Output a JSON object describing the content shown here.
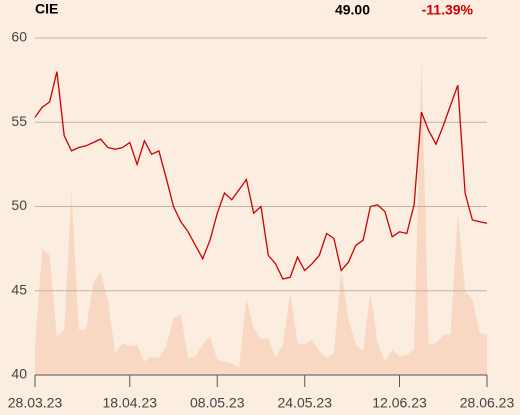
{
  "chart_data": {
    "type": "line",
    "symbol": "CIE",
    "last_price": "49.00",
    "change": "-11.39%",
    "categories": [
      "28.03.23",
      null,
      null,
      null,
      null,
      null,
      null,
      null,
      null,
      null,
      null,
      null,
      null,
      "18.04.23",
      null,
      null,
      null,
      null,
      null,
      null,
      null,
      null,
      null,
      null,
      null,
      "08.05.23",
      null,
      null,
      null,
      null,
      null,
      null,
      null,
      null,
      null,
      null,
      null,
      "24.05.23",
      null,
      null,
      null,
      null,
      null,
      null,
      null,
      null,
      null,
      null,
      null,
      null,
      "12.06.23",
      null,
      null,
      null,
      null,
      null,
      null,
      null,
      null,
      null,
      null,
      null,
      "28.06.23"
    ],
    "series": [
      {
        "name": "price",
        "kind": "line",
        "color": "#cc0000",
        "values": [
          55.3,
          55.9,
          56.2,
          58.0,
          54.2,
          53.3,
          53.5,
          53.6,
          53.8,
          54.0,
          53.5,
          53.4,
          53.5,
          53.8,
          52.5,
          53.9,
          53.1,
          53.3,
          51.7,
          50.0,
          49.1,
          48.5,
          47.7,
          46.9,
          48.0,
          49.6,
          50.8,
          50.4,
          51.0,
          51.6,
          49.6,
          50.0,
          47.1,
          46.6,
          45.7,
          45.8,
          47.0,
          46.2,
          46.6,
          47.1,
          48.4,
          48.1,
          46.2,
          46.7,
          47.7,
          48.0,
          50.0,
          50.1,
          49.7,
          48.2,
          48.5,
          48.4,
          50.1,
          55.6,
          54.5,
          53.7,
          54.8,
          56.0,
          57.2,
          50.8,
          49.2,
          49.1,
          49.0
        ]
      },
      {
        "name": "volume",
        "kind": "area",
        "color": "#f8d8c2",
        "values": [
          41.8,
          47.5,
          47.1,
          42.3,
          42.7,
          51.0,
          42.7,
          42.7,
          45.5,
          46.1,
          44.5,
          41.3,
          41.9,
          41.7,
          41.8,
          40.8,
          41.1,
          41.0,
          41.7,
          43.4,
          43.6,
          41.0,
          41.1,
          41.8,
          42.3,
          40.9,
          40.8,
          40.7,
          40.4,
          44.5,
          42.8,
          42.1,
          42.2,
          41.0,
          41.8,
          44.9,
          41.9,
          41.8,
          42.1,
          41.4,
          41.0,
          41.3,
          46.2,
          43.3,
          41.8,
          41.4,
          44.9,
          41.9,
          40.8,
          41.5,
          41.1,
          41.2,
          41.5,
          58.8,
          41.8,
          41.9,
          42.4,
          42.4,
          49.6,
          45.0,
          44.5,
          42.5,
          42.4
        ]
      }
    ],
    "ylim": [
      40,
      60
    ],
    "yticks": [
      40,
      45,
      50,
      55,
      60
    ],
    "grid": true,
    "change_color": "#cc0000"
  }
}
